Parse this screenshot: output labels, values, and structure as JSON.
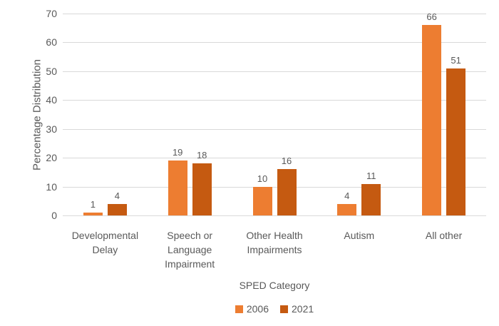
{
  "chart_data": {
    "type": "bar",
    "title": "",
    "categories": [
      "Developmental Delay",
      "Speech or Language Impairment",
      "Other Health Impairments",
      "Autism",
      "All other"
    ],
    "series": [
      {
        "name": "2006",
        "color": "#ED7D31",
        "values": [
          1,
          19,
          10,
          4,
          66
        ]
      },
      {
        "name": "2021",
        "color": "#C55A11",
        "values": [
          4,
          18,
          16,
          11,
          51
        ]
      }
    ],
    "xlabel": "SPED Category",
    "ylabel": "Percentage Distribution",
    "ylim": [
      0,
      70
    ],
    "ytick_step": 10,
    "yticks": [
      0,
      10,
      20,
      30,
      40,
      50,
      60,
      70
    ],
    "grid": true,
    "data_labels": true,
    "legend_position": "bottom"
  },
  "colors": {
    "background": "#FFFFFF",
    "grid": "#D9D9D9",
    "text": "#595959",
    "series_2006": "#ED7D31",
    "series_2021": "#C55A11"
  }
}
